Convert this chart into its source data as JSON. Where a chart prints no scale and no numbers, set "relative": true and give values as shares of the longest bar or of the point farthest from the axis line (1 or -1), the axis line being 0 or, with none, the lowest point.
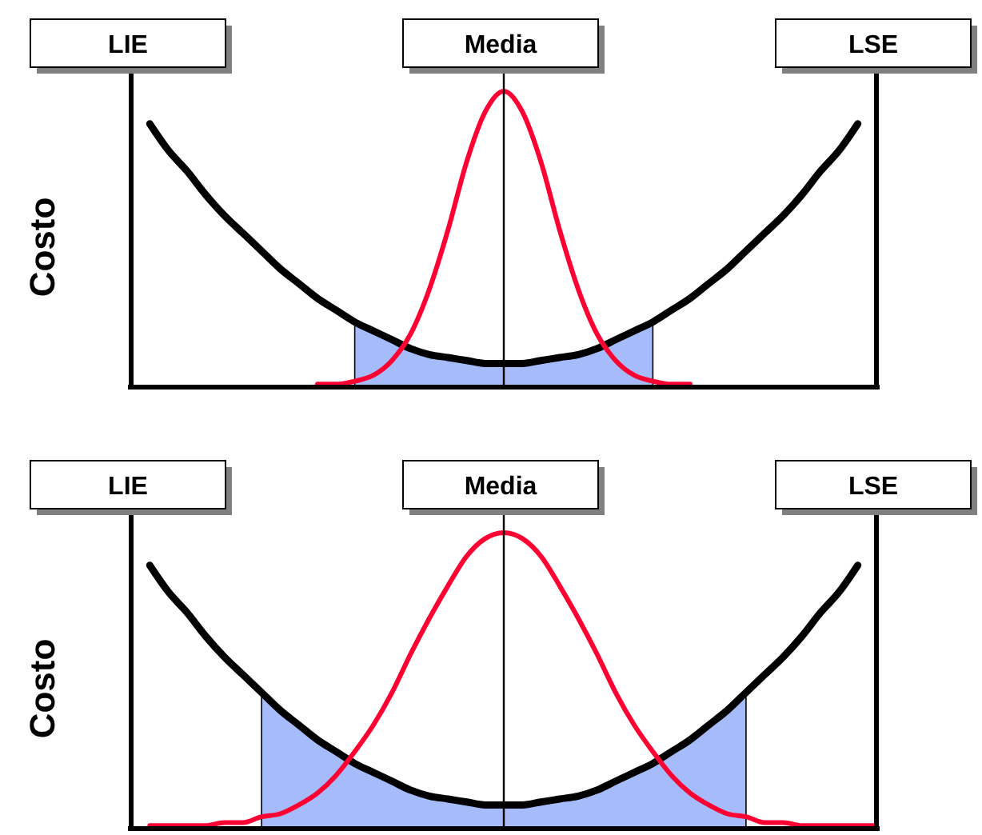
{
  "chart_data": [
    {
      "type": "line",
      "relative": true,
      "ylabel": "Costo",
      "categories": [
        "LIE",
        null,
        null,
        null,
        null,
        null,
        null,
        null,
        null,
        null,
        null,
        null,
        null,
        null,
        null,
        null,
        null,
        null,
        null,
        null,
        "Media",
        null,
        null,
        null,
        null,
        null,
        null,
        null,
        null,
        null,
        null,
        null,
        null,
        null,
        null,
        null,
        null,
        null,
        null,
        null,
        "LSE"
      ],
      "series": [
        {
          "type": "area",
          "color": "#a6bcfa",
          "values": [
            null,
            null,
            null,
            null,
            null,
            null,
            null,
            null,
            null,
            null,
            null,
            null,
            0.22,
            0.19,
            0.16,
            0.13,
            0.11,
            0.1,
            0.09,
            0.08,
            0.08,
            0.08,
            0.09,
            0.1,
            0.11,
            0.13,
            0.16,
            0.19,
            0.22,
            null,
            null,
            null,
            null,
            null,
            null,
            null,
            null,
            null,
            null,
            null,
            null
          ]
        },
        {
          "color": "#000000",
          "values": [
            null,
            0.89,
            0.8,
            0.73,
            0.65,
            0.58,
            0.52,
            0.46,
            0.4,
            0.35,
            0.3,
            0.26,
            0.22,
            0.19,
            0.16,
            0.13,
            0.11,
            0.1,
            0.09,
            0.08,
            0.08,
            0.08,
            0.09,
            0.1,
            0.11,
            0.13,
            0.16,
            0.19,
            0.22,
            0.26,
            0.3,
            0.35,
            0.4,
            0.46,
            0.52,
            0.58,
            0.65,
            0.73,
            0.8,
            0.89,
            null
          ]
        },
        {
          "color": "#ff0033",
          "values": [
            null,
            null,
            null,
            null,
            null,
            null,
            null,
            null,
            null,
            null,
            0.01,
            0.01,
            0.02,
            0.04,
            0.09,
            0.18,
            0.33,
            0.53,
            0.76,
            0.93,
            1.0,
            0.93,
            0.76,
            0.53,
            0.33,
            0.18,
            0.09,
            0.04,
            0.02,
            0.01,
            0.01,
            null,
            null,
            null,
            null,
            null,
            null,
            null,
            null,
            null,
            null
          ]
        }
      ],
      "ref_lines": [
        {
          "axis": "x",
          "value": "LIE"
        },
        {
          "axis": "x",
          "value": "Media"
        },
        {
          "axis": "x",
          "value": "LSE"
        }
      ]
    },
    {
      "type": "line",
      "relative": true,
      "ylabel": "Costo",
      "categories": [
        "LIE",
        null,
        null,
        null,
        null,
        null,
        null,
        null,
        null,
        null,
        null,
        null,
        null,
        null,
        null,
        null,
        null,
        null,
        null,
        null,
        "Media",
        null,
        null,
        null,
        null,
        null,
        null,
        null,
        null,
        null,
        null,
        null,
        null,
        null,
        null,
        null,
        null,
        null,
        null,
        null,
        "LSE"
      ],
      "series": [
        {
          "type": "area",
          "color": "#a6bcfa",
          "values": [
            null,
            null,
            null,
            null,
            null,
            null,
            null,
            0.46,
            0.4,
            0.35,
            0.3,
            0.26,
            0.22,
            0.19,
            0.16,
            0.13,
            0.11,
            0.1,
            0.09,
            0.08,
            0.08,
            0.08,
            0.09,
            0.1,
            0.11,
            0.13,
            0.16,
            0.19,
            0.22,
            0.26,
            0.3,
            0.35,
            0.4,
            0.46,
            null,
            null,
            null,
            null,
            null,
            null,
            null
          ]
        },
        {
          "color": "#000000",
          "values": [
            null,
            0.89,
            0.8,
            0.73,
            0.65,
            0.58,
            0.52,
            0.46,
            0.4,
            0.35,
            0.3,
            0.26,
            0.22,
            0.19,
            0.16,
            0.13,
            0.11,
            0.1,
            0.09,
            0.08,
            0.08,
            0.08,
            0.09,
            0.1,
            0.11,
            0.13,
            0.16,
            0.19,
            0.22,
            0.26,
            0.3,
            0.35,
            0.4,
            0.46,
            0.52,
            0.58,
            0.65,
            0.73,
            0.8,
            0.89,
            null
          ]
        },
        {
          "color": "#ff0033",
          "values": [
            null,
            0.01,
            0.01,
            0.01,
            0.01,
            0.02,
            0.02,
            0.04,
            0.05,
            0.08,
            0.12,
            0.18,
            0.26,
            0.35,
            0.46,
            0.59,
            0.71,
            0.82,
            0.92,
            0.98,
            1.0,
            0.98,
            0.92,
            0.82,
            0.71,
            0.59,
            0.46,
            0.35,
            0.26,
            0.18,
            0.12,
            0.08,
            0.05,
            0.04,
            0.02,
            0.02,
            0.01,
            0.01,
            0.01,
            0.01,
            0.01
          ]
        }
      ],
      "ref_lines": [
        {
          "axis": "x",
          "value": "LIE"
        },
        {
          "axis": "x",
          "value": "Media"
        },
        {
          "axis": "x",
          "value": "LSE"
        }
      ]
    }
  ]
}
